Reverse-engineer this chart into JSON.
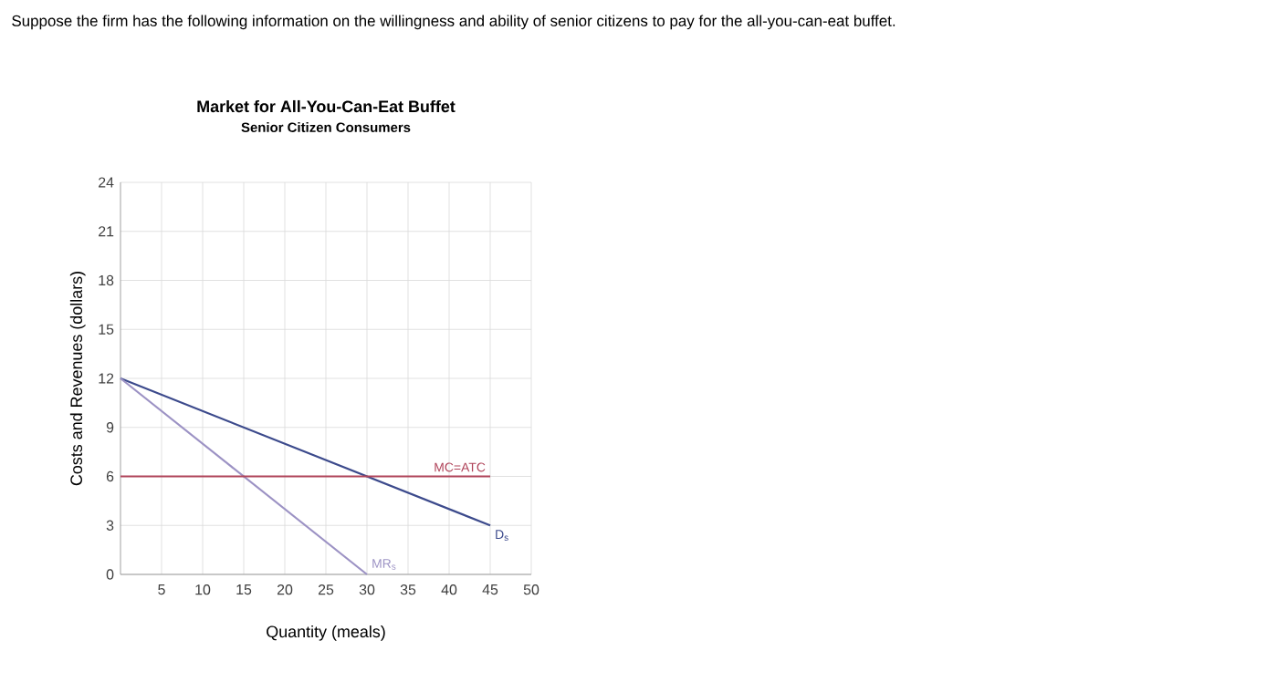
{
  "chart_data": {
    "type": "line",
    "title": "Market for All-You-Can-Eat Buffet",
    "subtitle": "Senior Citizen Consumers",
    "xlabel": "Quantity (meals)",
    "ylabel": "Costs and Revenues (dollars)",
    "annotations": [
      "Suppose the firm has the following information on the willingness and ability of senior citizens to pay for the all-you-can-eat buffet."
    ],
    "series": [
      {
        "name": "D$_{s}$",
        "color": "#3c4a8c",
        "x": [
          0,
          45
        ],
        "values": [
          12,
          3
        ]
      },
      {
        "name": "MR$_{s}$",
        "color": "#9c92c4",
        "x": [
          0,
          30
        ],
        "values": [
          12,
          0
        ]
      },
      {
        "name": "MC=ATC",
        "color": "#b0445a",
        "x": [
          0,
          45
        ],
        "values": [
          6,
          6
        ]
      }
    ],
    "xlim": [
      0,
      50
    ],
    "ylim": [
      0,
      24
    ],
    "xticks": [
      5,
      10,
      15,
      20,
      25,
      30,
      35,
      40,
      45,
      50
    ],
    "yticks": [
      0,
      3,
      6,
      9,
      12,
      15,
      18,
      21,
      24
    ],
    "grid": true,
    "marker": "none",
    "line_style": "solid"
  }
}
